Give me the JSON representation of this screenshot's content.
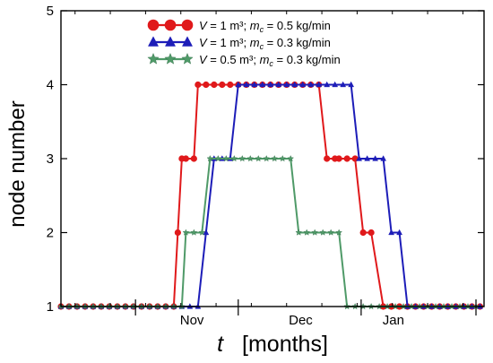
{
  "chart_data": {
    "type": "line",
    "xlabel": {
      "var": "t",
      "unit": "[months]"
    },
    "ylabel": "node number",
    "ylim": [
      1,
      5
    ],
    "yticks": [
      "1",
      "2",
      "3",
      "4",
      "5"
    ],
    "xlim": [
      0,
      21
    ],
    "xticks": [
      {
        "label": "Nov",
        "x": 6.5
      },
      {
        "label": "Dec",
        "x": 11.9
      },
      {
        "label": "Jan",
        "x": 16.5
      }
    ],
    "legend_position": "top-center",
    "series": [
      {
        "name": "V = 1 m³;  m_c = 0.5 kg/min",
        "legend": {
          "a": "V",
          "b": " = 1 m³;  ",
          "c": "m",
          "d": "c",
          "e": " = 0.5 kg/min"
        },
        "color": "#e0191b",
        "marker": "circle",
        "x": [
          0,
          0.4,
          0.8,
          1.2,
          1.6,
          2.0,
          2.4,
          2.8,
          3.2,
          3.6,
          4.0,
          4.4,
          4.8,
          5.2,
          5.6,
          5.8,
          6.0,
          6.2,
          6.6,
          6.8,
          7.2,
          7.6,
          8.0,
          8.4,
          8.8,
          9.2,
          9.6,
          10.0,
          10.4,
          10.8,
          11.2,
          11.6,
          12.0,
          12.4,
          12.8,
          13.2,
          13.6,
          13.8,
          14.2,
          14.6,
          15.0,
          15.4,
          16.0,
          16.4,
          16.8,
          17.2,
          17.6,
          18.0,
          18.4,
          18.8,
          19.2,
          19.6,
          20.0,
          20.4,
          20.8
        ],
        "y": [
          1,
          1,
          1,
          1,
          1,
          1,
          1,
          1,
          1,
          1,
          1,
          1,
          1,
          1,
          1,
          2,
          3,
          3,
          3,
          4,
          4,
          4,
          4,
          4,
          4,
          4,
          4,
          4,
          4,
          4,
          4,
          4,
          4,
          4,
          4,
          3,
          3,
          3,
          3,
          3,
          2,
          2,
          1,
          1,
          1,
          1,
          1,
          1,
          1,
          1,
          1,
          1,
          1,
          1,
          1
        ],
        "x_exact": true
      },
      {
        "name": "V = 1 m³;  m_c = 0.3 kg/min",
        "legend": {
          "a": "V",
          "b": " = 1 m³;  ",
          "c": "m",
          "d": "c",
          "e": " = 0.3 kg/min"
        },
        "color": "#1d1db8",
        "marker": "triangle",
        "x": [
          0,
          0.4,
          0.8,
          1.2,
          1.6,
          2.0,
          2.4,
          2.8,
          3.2,
          3.6,
          4.0,
          4.4,
          4.8,
          5.2,
          5.6,
          6.0,
          6.4,
          6.8,
          7.2,
          7.6,
          8.0,
          8.4,
          8.8,
          9.2,
          9.6,
          10.0,
          10.4,
          10.8,
          11.2,
          11.6,
          12.0,
          12.4,
          12.8,
          13.2,
          13.6,
          14.0,
          14.4,
          14.8,
          15.2,
          15.6,
          16.0,
          16.4,
          16.8,
          17.2,
          17.6,
          18.0,
          18.4,
          18.8,
          19.2,
          19.6,
          20.0,
          20.4,
          20.8
        ],
        "y": [
          1,
          1,
          1,
          1,
          1,
          1,
          1,
          1,
          1,
          1,
          1,
          1,
          1,
          1,
          1,
          1,
          1,
          1,
          2,
          3,
          3,
          3,
          4,
          4,
          4,
          4,
          4,
          4,
          4,
          4,
          4,
          4,
          4,
          4,
          4,
          4,
          4,
          3,
          3,
          3,
          3,
          2,
          2,
          1,
          1,
          1,
          1,
          1,
          1,
          1,
          1,
          1,
          1
        ]
      },
      {
        "name": "V = 0.5 m³;  m_c = 0.3 kg/min",
        "legend": {
          "a": "V",
          "b": " = 0.5 m³;  ",
          "c": "m",
          "d": "c",
          "e": " = 0.3 kg/min"
        },
        "color": "#4f9a68",
        "marker": "star",
        "x": [
          0,
          0.4,
          0.8,
          1.2,
          1.6,
          2.0,
          2.4,
          2.8,
          3.2,
          3.6,
          4.0,
          4.4,
          4.8,
          5.2,
          5.6,
          6.0,
          6.2,
          6.6,
          7.0,
          7.4,
          7.8,
          8.2,
          8.6,
          9.0,
          9.4,
          9.8,
          10.2,
          10.6,
          11.0,
          11.4,
          11.8,
          12.2,
          12.6,
          13.0,
          13.4,
          13.8,
          14.2,
          14.6,
          15.0,
          15.4,
          15.8,
          16.2,
          16.6,
          17.0,
          17.4,
          17.8,
          18.2,
          18.6,
          19.0,
          19.4,
          19.8,
          20.2,
          20.6
        ],
        "y": [
          1,
          1,
          1,
          1,
          1,
          1,
          1,
          1,
          1,
          1,
          1,
          1,
          1,
          1,
          1,
          1,
          2,
          2,
          2,
          3,
          3,
          3,
          3,
          3,
          3,
          3,
          3,
          3,
          3,
          3,
          2,
          2,
          2,
          2,
          2,
          2,
          1,
          1,
          1,
          1,
          1,
          1,
          1,
          1,
          1,
          1,
          1,
          1,
          1,
          1,
          1,
          1,
          1
        ]
      }
    ]
  }
}
